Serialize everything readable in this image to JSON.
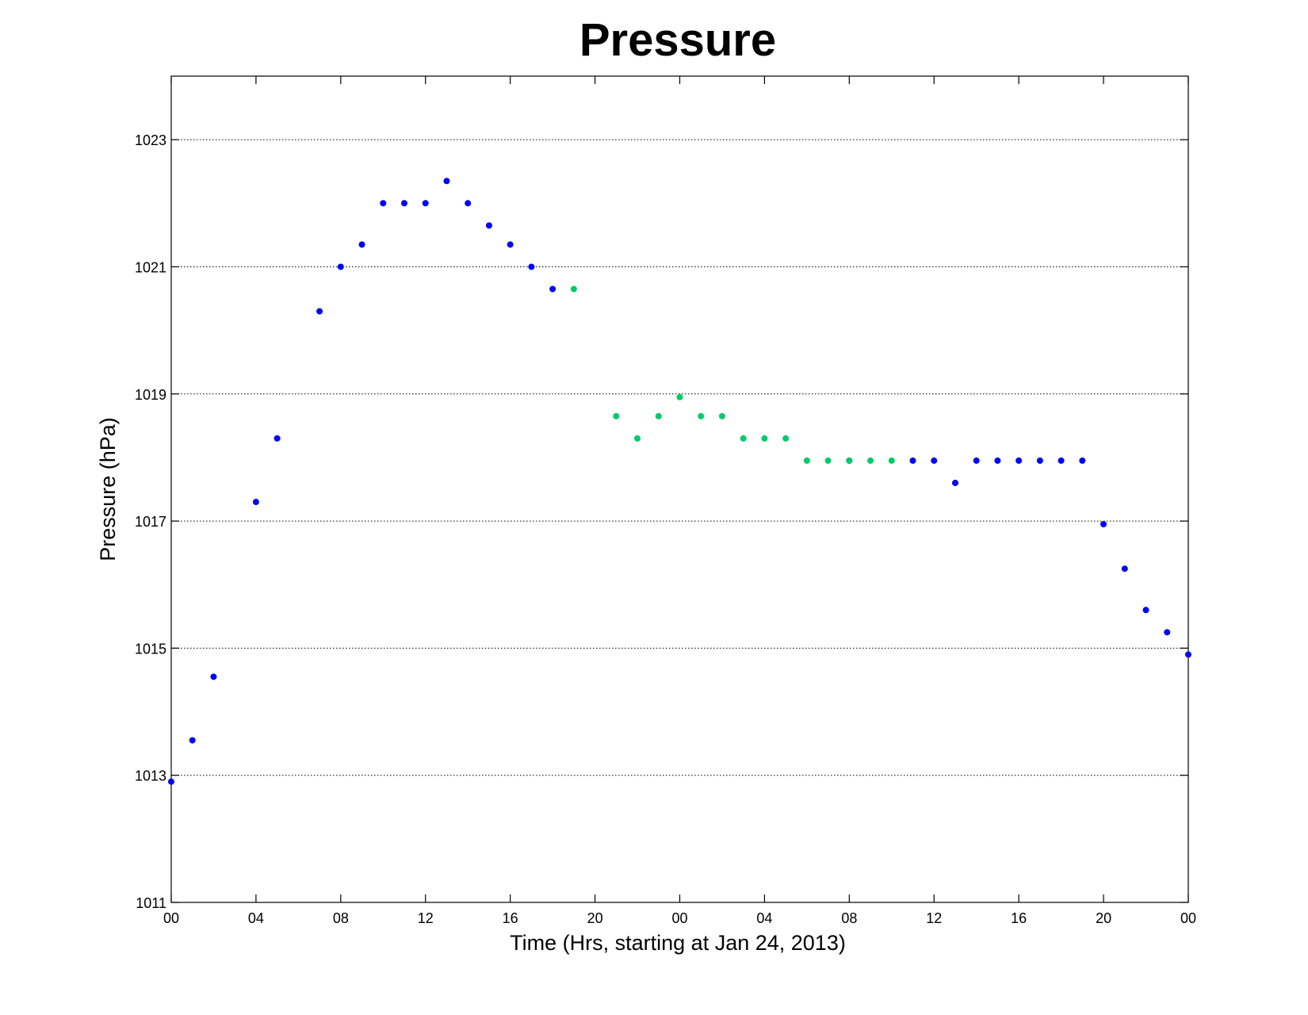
{
  "chart_data": {
    "type": "scatter",
    "title": "Pressure",
    "xlabel": "Time (Hrs, starting at Jan 24, 2013)",
    "ylabel": "Pressure (hPa)",
    "xlim": [
      0,
      48
    ],
    "ylim": [
      1011,
      1024
    ],
    "grid": "horizontal dotted lines at y ticks",
    "x_ticks": [
      {
        "value": 0,
        "label": "00"
      },
      {
        "value": 4,
        "label": "04"
      },
      {
        "value": 8,
        "label": "08"
      },
      {
        "value": 12,
        "label": "12"
      },
      {
        "value": 16,
        "label": "16"
      },
      {
        "value": 20,
        "label": "20"
      },
      {
        "value": 24,
        "label": "00"
      },
      {
        "value": 28,
        "label": "04"
      },
      {
        "value": 32,
        "label": "08"
      },
      {
        "value": 36,
        "label": "12"
      },
      {
        "value": 40,
        "label": "16"
      },
      {
        "value": 44,
        "label": "20"
      },
      {
        "value": 48,
        "label": "00"
      }
    ],
    "y_ticks": [
      {
        "value": 1011,
        "label": "1011"
      },
      {
        "value": 1013,
        "label": "1013"
      },
      {
        "value": 1015,
        "label": "1015"
      },
      {
        "value": 1017,
        "label": "1017"
      },
      {
        "value": 1019,
        "label": "1019"
      },
      {
        "value": 1021,
        "label": "1021"
      },
      {
        "value": 1023,
        "label": "1023"
      }
    ],
    "series": [
      {
        "color": "#0000ff",
        "points": [
          [
            0,
            1012.9
          ],
          [
            1,
            1013.55
          ],
          [
            2,
            1014.55
          ],
          [
            4,
            1017.3
          ],
          [
            5,
            1018.3
          ],
          [
            7,
            1020.3
          ],
          [
            8,
            1021.0
          ],
          [
            9,
            1021.35
          ],
          [
            10,
            1022.0
          ],
          [
            11,
            1022.0
          ],
          [
            12,
            1022.0
          ],
          [
            13,
            1022.35
          ],
          [
            14,
            1022.0
          ],
          [
            15,
            1021.65
          ],
          [
            16,
            1021.35
          ],
          [
            17,
            1021.0
          ],
          [
            18,
            1020.65
          ],
          [
            32,
            1017.95
          ],
          [
            35,
            1017.95
          ],
          [
            36,
            1017.95
          ],
          [
            37,
            1017.6
          ],
          [
            38,
            1017.95
          ],
          [
            39,
            1017.95
          ],
          [
            40,
            1017.95
          ],
          [
            41,
            1017.95
          ],
          [
            42,
            1017.95
          ],
          [
            43,
            1017.95
          ],
          [
            44,
            1016.95
          ],
          [
            45,
            1016.25
          ],
          [
            46,
            1015.6
          ],
          [
            47,
            1015.25
          ],
          [
            48,
            1014.9
          ]
        ]
      },
      {
        "color": "#00cc66",
        "points": [
          [
            19,
            1020.65
          ],
          [
            21,
            1018.65
          ],
          [
            22,
            1018.3
          ],
          [
            23,
            1018.65
          ],
          [
            24,
            1018.95
          ],
          [
            25,
            1018.65
          ],
          [
            26,
            1018.65
          ],
          [
            27,
            1018.3
          ],
          [
            28,
            1018.3
          ],
          [
            29,
            1018.3
          ],
          [
            30,
            1017.95
          ],
          [
            31,
            1017.95
          ],
          [
            32,
            1017.95
          ],
          [
            33,
            1017.95
          ],
          [
            34,
            1017.95
          ]
        ]
      }
    ]
  }
}
